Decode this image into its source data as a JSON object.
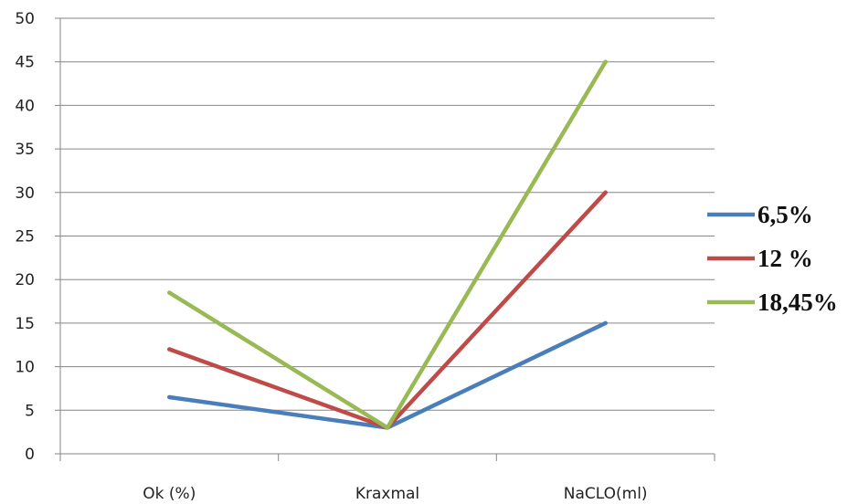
{
  "chart_data": {
    "type": "line",
    "categories": [
      "Ok (%)",
      "Kraxmal",
      "NaCLO(ml)"
    ],
    "series": [
      {
        "name": "6,5%",
        "values": [
          6.5,
          3,
          15
        ],
        "color": "#4A7EBB"
      },
      {
        "name": "12 %",
        "values": [
          12,
          3,
          30
        ],
        "color": "#BE4B48"
      },
      {
        "name": "18,45%",
        "values": [
          18.5,
          3,
          45
        ],
        "color": "#98B954"
      }
    ],
    "ylim": [
      0,
      50
    ],
    "yticks": [
      "0",
      "5",
      "10",
      "15",
      "20",
      "25",
      "30",
      "35",
      "40",
      "45",
      "50"
    ],
    "grid": true,
    "legend_position": "right"
  }
}
